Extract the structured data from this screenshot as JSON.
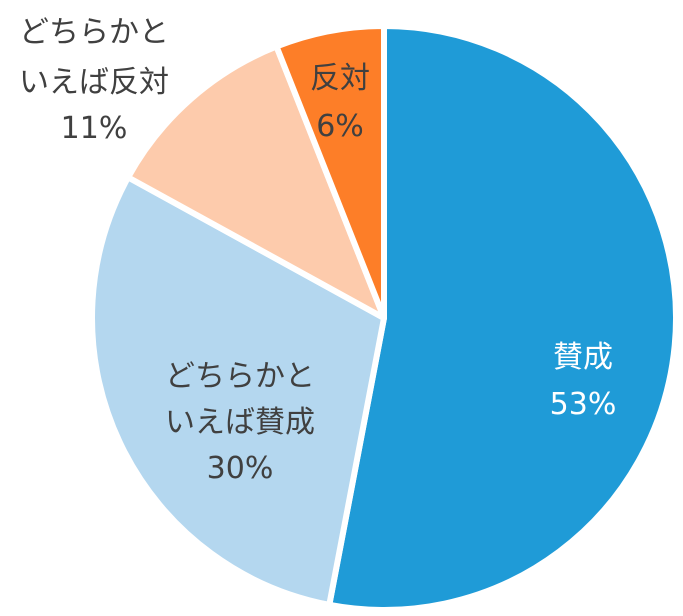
{
  "chart_data": {
    "type": "pie",
    "title": "",
    "start_angle": "top, clockwise",
    "categories": [
      "賛成",
      "どちらかといえば賛成",
      "どちらかといえば反対",
      "反対"
    ],
    "values": [
      53,
      30,
      11,
      6
    ],
    "unit": "%",
    "colors": [
      "#1F9BD7",
      "#B4D7EF",
      "#FDCBAC",
      "#FD7E28"
    ],
    "legend": "none (data labels on slices)",
    "labels": [
      {
        "lines": [
          "賛成"
        ],
        "pct": "53%",
        "color": "#ffffff"
      },
      {
        "lines": [
          "どちらかと",
          "いえば賛成"
        ],
        "pct": "30%",
        "color": "#404040"
      },
      {
        "lines": [
          "どちらかと",
          "いえば反対"
        ],
        "pct": "11%",
        "color": "#404040"
      },
      {
        "lines": [
          "反対"
        ],
        "pct": "6%",
        "color": "#404040"
      }
    ]
  },
  "slices": [
    {
      "name": "賛成",
      "line1": "賛成",
      "pct": "53%"
    },
    {
      "name": "どちらかといえば賛成",
      "line1": "どちらかと",
      "line2": "いえば賛成",
      "pct": "30%"
    },
    {
      "name": "どちらかといえば反対",
      "line1": "どちらかと",
      "line2": "いえば反対",
      "pct": "11%"
    },
    {
      "name": "反対",
      "line1": "反対",
      "pct": "6%"
    }
  ]
}
